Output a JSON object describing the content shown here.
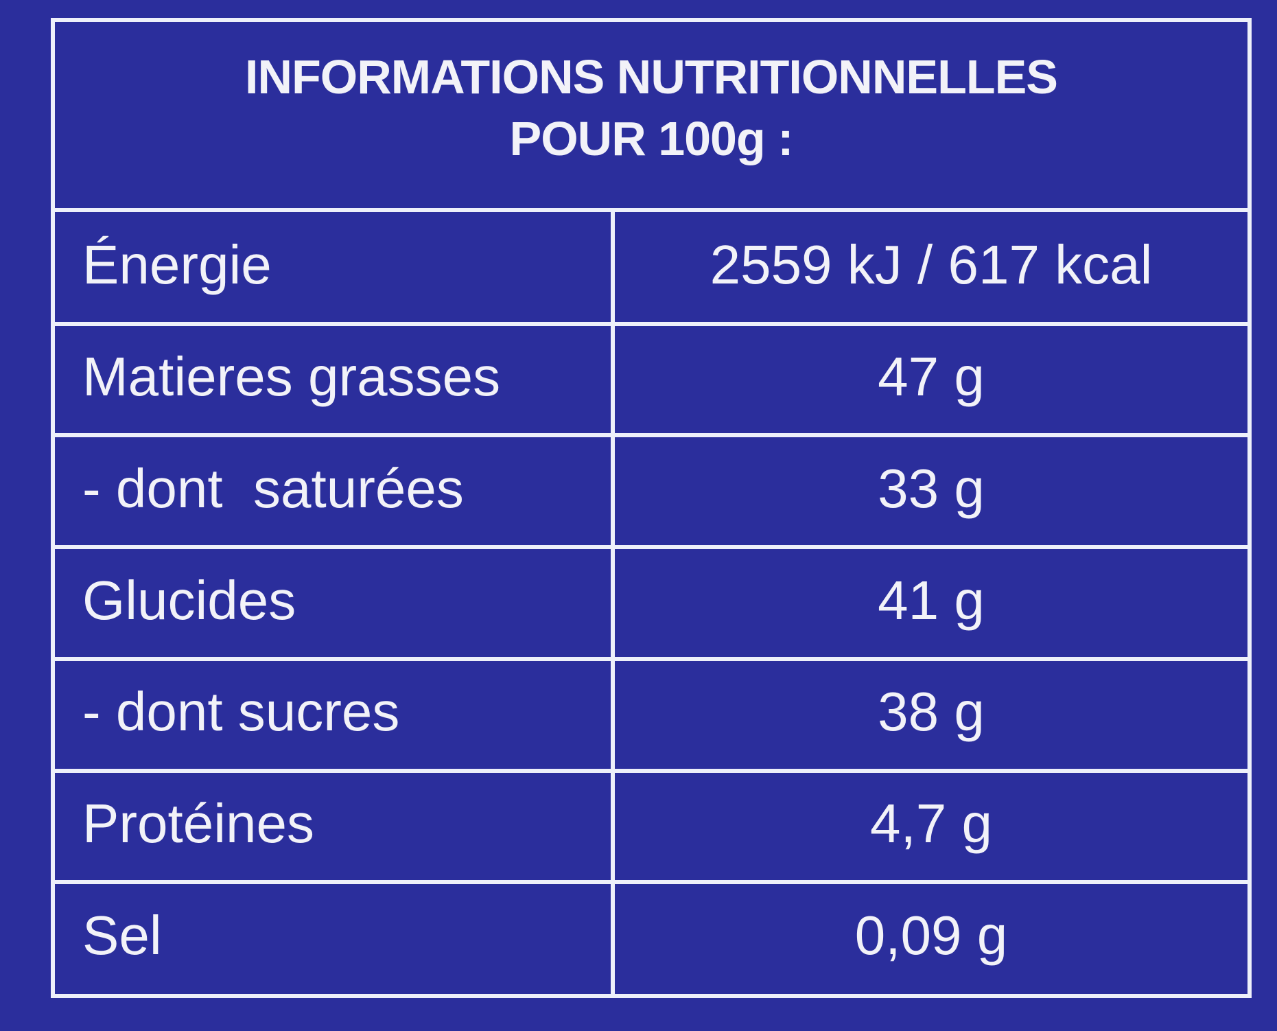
{
  "header": {
    "title": "INFORMATIONS NUTRITIONNELLES",
    "subtitle": "POUR 100g :"
  },
  "table": {
    "rows": [
      [
        "Énergie",
        "2559 kJ / 617 kcal"
      ],
      [
        "Matieres grasses",
        "47 g"
      ],
      [
        "- dont  saturées",
        "33 g"
      ],
      [
        "Glucides",
        "41 g"
      ],
      [
        "- dont sucres",
        "38 g"
      ],
      [
        "Protéines",
        "4,7 g"
      ],
      [
        "Sel",
        "0,09 g"
      ]
    ]
  }
}
